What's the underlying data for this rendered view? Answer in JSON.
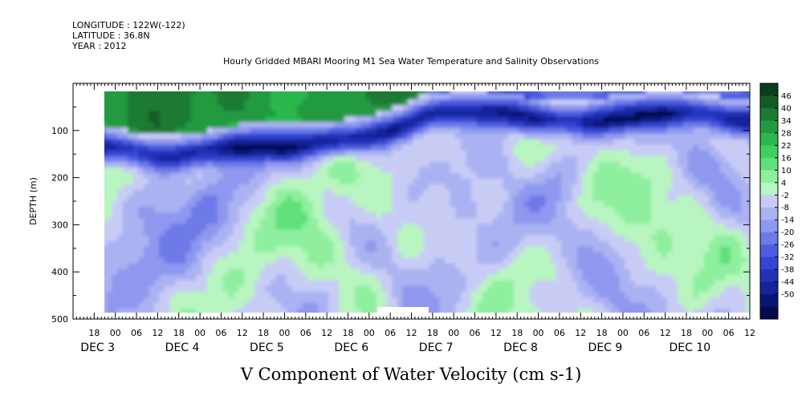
{
  "header": {
    "longitude": "LONGITUDE : 122W(-122)",
    "latitude": "LATITUDE : 36.8N",
    "year": "YEAR : 2012",
    "title": "Hourly Gridded MBARI Mooring M1 Sea Water Temperature and Salinity Observations"
  },
  "chart_data": {
    "type": "heatmap",
    "title": "Hourly Gridded MBARI Mooring M1 Sea Water Temperature and Salinity Observations",
    "xlabel": "V Component of Water Velocity (cm s-1)",
    "ylabel": "DEPTH (m)",
    "x_axis": {
      "start_hour": -12,
      "end_hour": 180,
      "hour_tick_labels": [
        "18",
        "00",
        "06",
        "12",
        "18",
        "00",
        "06",
        "12",
        "18",
        "00",
        "06",
        "12",
        "18",
        "00",
        "06",
        "12",
        "18",
        "00",
        "06",
        "12",
        "18",
        "00",
        "06",
        "12",
        "18",
        "00",
        "06",
        "12",
        "18",
        "00",
        "06",
        "12"
      ],
      "date_labels": [
        "DEC  3",
        "DEC  4",
        "DEC  5",
        "DEC  6",
        "DEC  7",
        "DEC  8",
        "DEC  9",
        "DEC 10"
      ]
    },
    "y_axis": {
      "range": [
        500,
        0
      ],
      "ticks": [
        100,
        200,
        300,
        400,
        500
      ],
      "tick_labels": [
        "100",
        "200",
        "300",
        "400",
        "500"
      ]
    },
    "colorbar": {
      "levels": [
        "46",
        "40",
        "34",
        "28",
        "22",
        "16",
        "10",
        "4",
        "-2",
        "-8",
        "-14",
        "-20",
        "-26",
        "-32",
        "-38",
        "-44",
        "-50"
      ],
      "colors": [
        "#0a3d1a",
        "#145c26",
        "#1b7a33",
        "#229a40",
        "#2bb84d",
        "#3fcf5e",
        "#5fe07a",
        "#8ef09f",
        "#b8f5c0",
        "#c8ccf5",
        "#aab2f2",
        "#8e98ee",
        "#6d7ae8",
        "#4d5de0",
        "#3345d2",
        "#2233b8",
        "#15249a",
        "#0b1578",
        "#030a50"
      ]
    },
    "field": {
      "description_free": true,
      "surface_band_v": 30,
      "jet_v": -38,
      "deep_mix": [
        -14,
        10
      ]
    }
  }
}
